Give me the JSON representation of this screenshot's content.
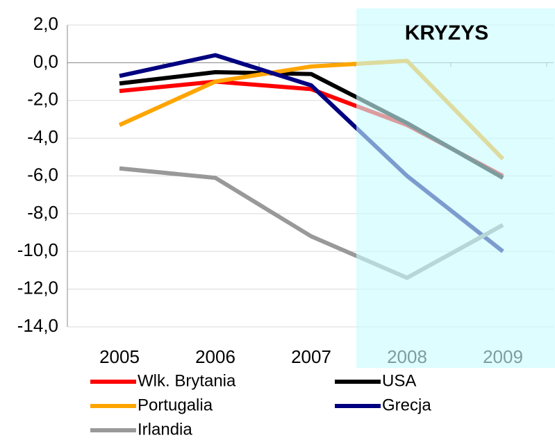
{
  "chart_data": {
    "type": "line",
    "annotation": "KRYZYS",
    "categories": [
      "2005",
      "2006",
      "2007",
      "2008",
      "2009"
    ],
    "series": [
      {
        "name": "Wlk. Brytania",
        "color": "#ff0000",
        "values": [
          -1.5,
          -1.0,
          -1.4,
          -3.3,
          -6.0
        ]
      },
      {
        "name": "USA",
        "color": "#000000",
        "values": [
          -1.1,
          -0.5,
          -0.6,
          -3.2,
          -6.1
        ]
      },
      {
        "name": "Portugalia",
        "color": "#ffa500",
        "values": [
          -3.3,
          -1.0,
          -0.2,
          0.1,
          -5.1
        ]
      },
      {
        "name": "Grecja",
        "color": "#000080",
        "values": [
          -0.7,
          0.4,
          -1.2,
          -6.0,
          -10.0
        ]
      },
      {
        "name": "Irlandia",
        "color": "#999999",
        "values": [
          -5.6,
          -6.1,
          -9.2,
          -11.4,
          -8.6
        ]
      }
    ],
    "ylim": [
      -14,
      2
    ],
    "yticks": [
      {
        "value": -14,
        "label": "-14,0"
      },
      {
        "value": -12,
        "label": "-12,0"
      },
      {
        "value": -10,
        "label": "-10,0"
      },
      {
        "value": -8,
        "label": "-8,0"
      },
      {
        "value": -6,
        "label": "-6,0"
      },
      {
        "value": -4,
        "label": "-4,0"
      },
      {
        "value": -2,
        "label": "-2,0"
      },
      {
        "value": 0,
        "label": "0,0"
      },
      {
        "value": 2,
        "label": "2,0"
      }
    ],
    "grid": true
  }
}
